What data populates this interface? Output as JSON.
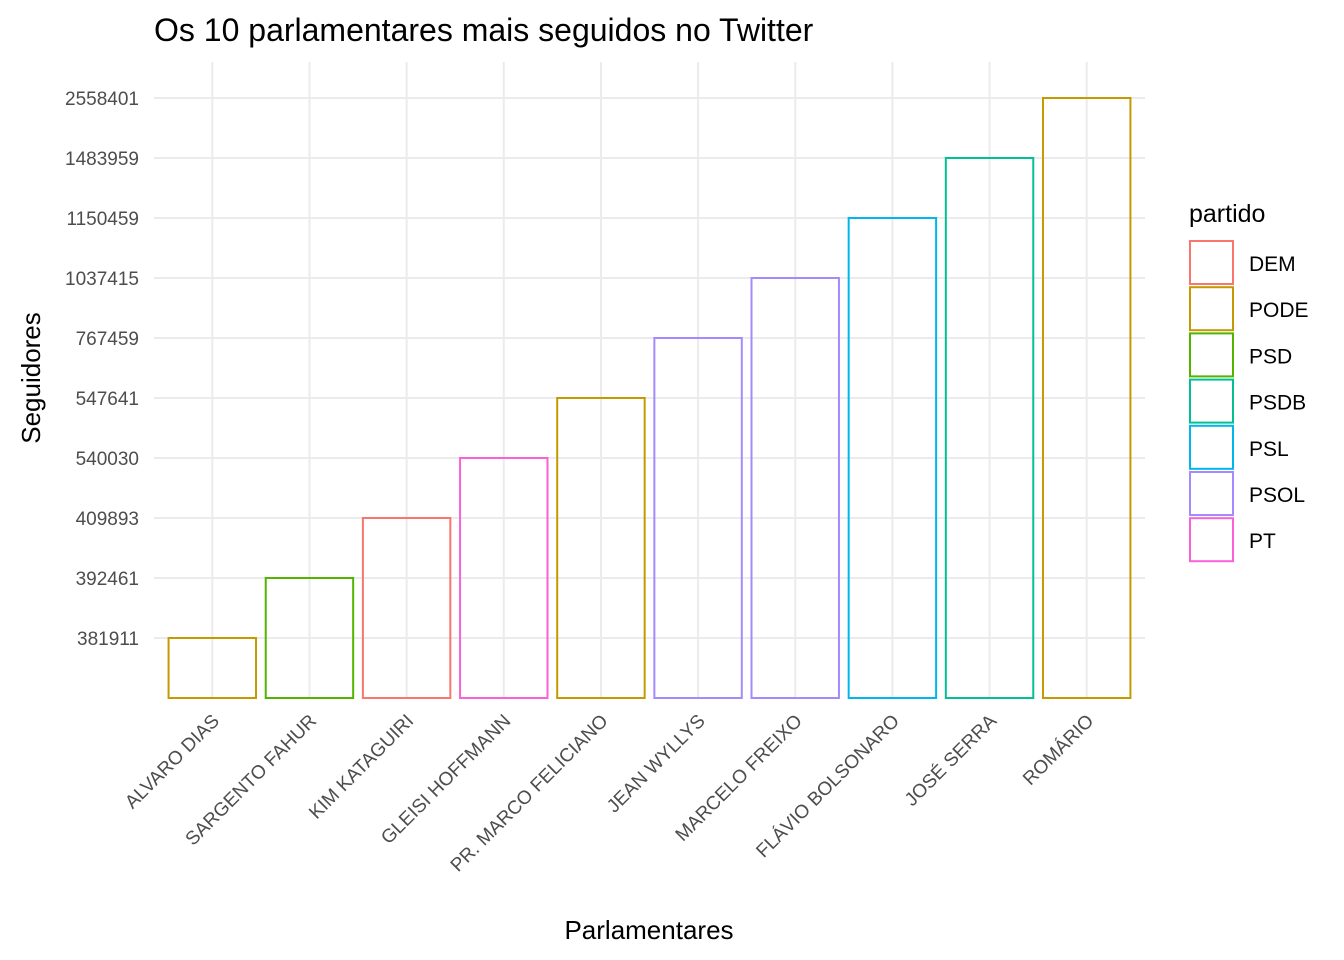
{
  "chart_data": {
    "type": "bar",
    "title": "Os 10 parlamentares mais seguidos no Twitter",
    "xlabel": "Parlamentares",
    "ylabel": "Seguidores",
    "categories": [
      "ALVARO DIAS",
      "SARGENTO FAHUR",
      "KIM KATAGUIRI",
      "GLEISI HOFFMANN",
      "PR. MARCO FELICIANO",
      "JEAN WYLLYS",
      "MARCELO FREIXO",
      "FLÁVIO BOLSONARO",
      "JOSÉ SERRA",
      "ROMÁRIO"
    ],
    "values": [
      "381911",
      "392461",
      "409893",
      "540030",
      "547641",
      "767459",
      "1037415",
      "1150459",
      "1483959",
      "2558401"
    ],
    "parties": [
      "PODE",
      "PSD",
      "DEM",
      "PT",
      "PODE",
      "PSOL",
      "PSOL",
      "PSL",
      "PSDB",
      "PODE"
    ],
    "y_ticks": [
      "381911",
      "392461",
      "409893",
      "540030",
      "547641",
      "767459",
      "1037415",
      "1150459",
      "1483959",
      "2558401"
    ],
    "y_scale": "discrete",
    "grid": true,
    "legend": {
      "title": "partido",
      "position": "right",
      "entries": [
        {
          "name": "DEM",
          "color": "#F8766D"
        },
        {
          "name": "PODE",
          "color": "#C49A00"
        },
        {
          "name": "PSD",
          "color": "#53B400"
        },
        {
          "name": "PSDB",
          "color": "#00C094"
        },
        {
          "name": "PSL",
          "color": "#00B6EB"
        },
        {
          "name": "PSOL",
          "color": "#A58AFF"
        },
        {
          "name": "PT",
          "color": "#FB61D7"
        }
      ]
    }
  }
}
